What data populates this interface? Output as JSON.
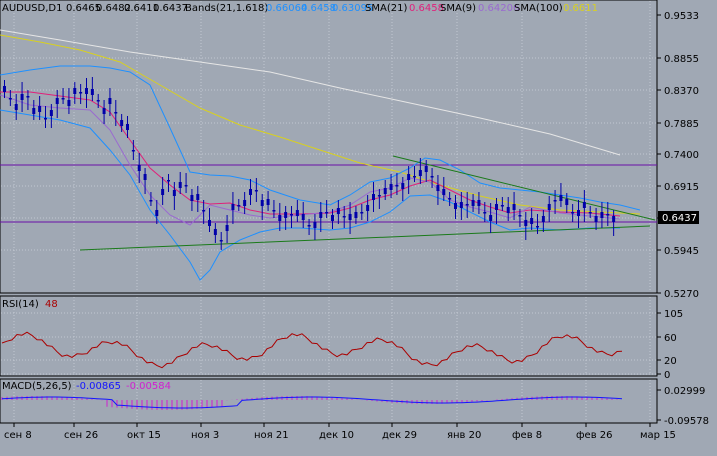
{
  "colors": {
    "background": "#a0a8b4",
    "grid": "#c2c8d2",
    "candle": "#0000aa",
    "bands": "#1e90ff",
    "sma21": "#e0207a",
    "sma9": "#9a6ad0",
    "sma100": "#d8d020",
    "longline": "#e6e6e6",
    "levels": "#6a0fa8",
    "trendlines": "#1a7a1a",
    "rsi": "#aa0000",
    "macd_hist": "#d020d0",
    "macd_signal": "#1414ff",
    "axis_text": "#000000",
    "price_marker": "#000000"
  },
  "main": {
    "header": {
      "symbol": "AUDUSD,D1",
      "open": "0.6465",
      "high": "0.6482",
      "low": "0.6411",
      "close": "0.6437",
      "bands_label": "Bands(21,1.618)",
      "bands_upper": "0.66064",
      "bands_mid": "0.6458",
      "bands_lower": "0.63095",
      "sma21_label": "SMA(21)",
      "sma21_value": "0.6458",
      "sma9_label": "SMA(9)",
      "sma9_value": "0.64206",
      "sma100_label": "SMA(100)",
      "sma100_value": "0.6611"
    },
    "y_ticks": [
      "0.9533",
      "0.8855",
      "0.8370",
      "0.7885",
      "0.7400",
      "0.6915",
      "0.6430",
      "0.5945",
      "0.5270"
    ],
    "current_price": "0.6437"
  },
  "rsi": {
    "label": "RSI(14)",
    "value": "48",
    "y_ticks": [
      "105",
      "60",
      "20",
      "0"
    ]
  },
  "macd": {
    "label": "MACD(5,26,5)",
    "main_value": "-0.00865",
    "signal_value": "-0.00584",
    "y_ticks": [
      "0.02999",
      "-0.09578"
    ]
  },
  "x_axis": {
    "labels": [
      "сен 8",
      "сен 26",
      "окт 15",
      "ноя 3",
      "ноя 21",
      "дек 10",
      "дек 29",
      "янв 20",
      "фев 8",
      "фев 26",
      "мар 15"
    ]
  }
}
